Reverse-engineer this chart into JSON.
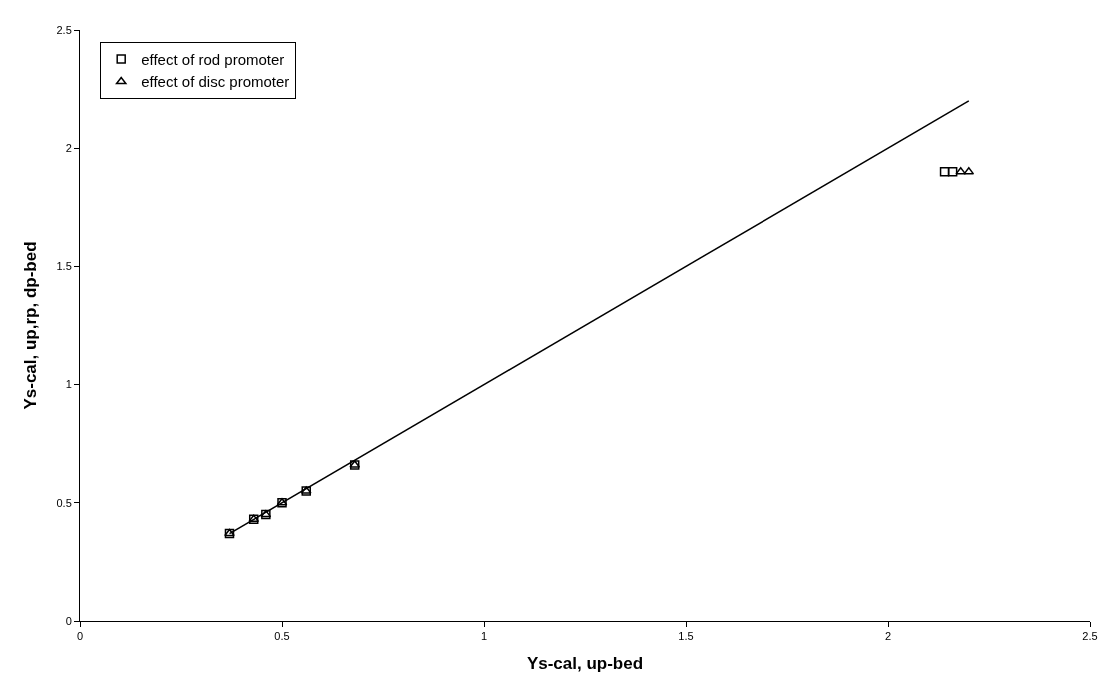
{
  "chart_data": {
    "type": "scatter",
    "xlabel": "Ys-cal, up-bed",
    "ylabel": "Ys-cal, up,rp, dp-bed",
    "xlim": [
      0,
      2.5
    ],
    "ylim": [
      0,
      2.5
    ],
    "xticks": [
      0,
      0.5,
      1,
      1.5,
      2,
      2.5
    ],
    "yticks": [
      0,
      0.5,
      1,
      1.5,
      2,
      2.5
    ],
    "legend": "top left",
    "series": [
      {
        "name": "effect of rod promoter",
        "color": "#000000",
        "marker": "square",
        "x": [
          0.37,
          0.43,
          0.46,
          0.5,
          0.56,
          0.68,
          2.14,
          2.16
        ],
        "values": [
          0.37,
          0.43,
          0.45,
          0.5,
          0.55,
          0.66,
          1.9,
          1.9
        ]
      },
      {
        "name": "effect of disc promoter",
        "color": "#000000",
        "marker": "triangle",
        "x": [
          0.37,
          0.43,
          0.46,
          0.5,
          0.56,
          0.68,
          2.18,
          2.2
        ],
        "values": [
          0.37,
          0.43,
          0.45,
          0.5,
          0.55,
          0.66,
          1.9,
          1.9
        ]
      },
      {
        "type": "line",
        "color": "#000000",
        "marker": "none",
        "line_style": "solid",
        "x": [
          0.37,
          2.2
        ],
        "values": [
          0.37,
          2.2
        ]
      }
    ]
  }
}
